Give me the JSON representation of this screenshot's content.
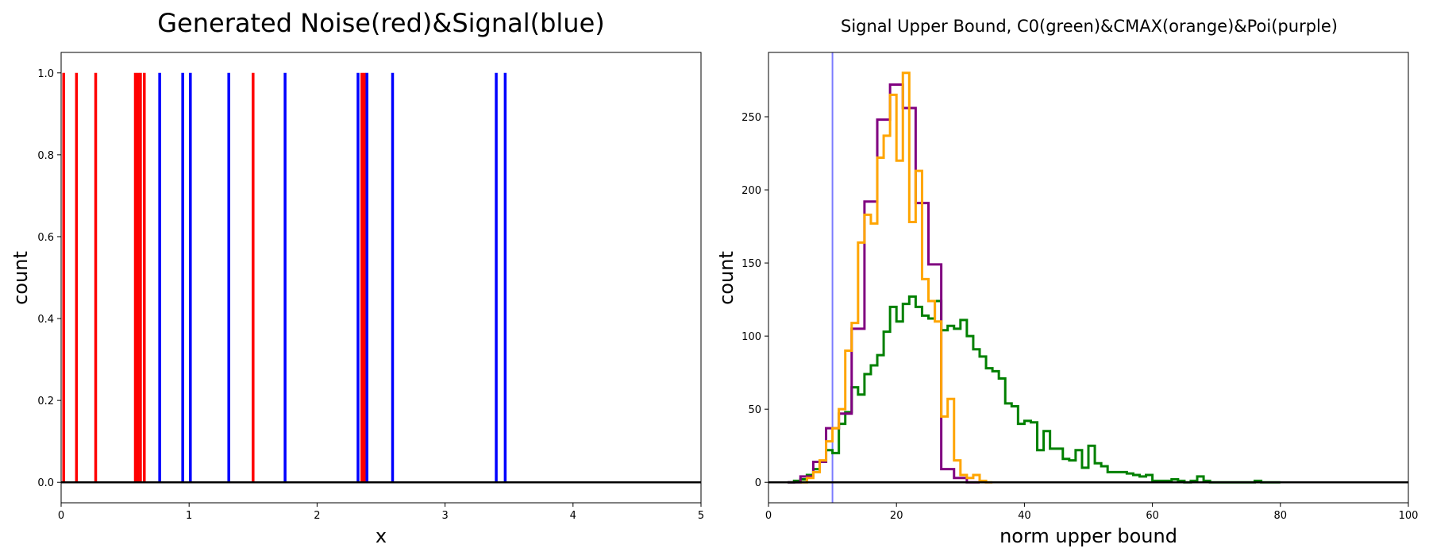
{
  "chart_data": [
    {
      "type": "line",
      "title": "Generated Noise(red)&Signal(blue)",
      "xlabel": "x",
      "ylabel": "count",
      "xlim": [
        0,
        5
      ],
      "ylim": [
        -0.05,
        1.05
      ],
      "xticks": [
        0,
        1,
        2,
        3,
        4,
        5
      ],
      "yticks": [
        0.0,
        0.2,
        0.4,
        0.6,
        0.8,
        1.0
      ],
      "grid": false,
      "baseline": 0,
      "series": [
        {
          "color": "#ff0000",
          "x": [
            0.02,
            0.12,
            0.27,
            0.58,
            0.6,
            0.62,
            0.65,
            1.5,
            2.35,
            2.37
          ]
        },
        {
          "color": "#0000ff",
          "x": [
            0.77,
            0.95,
            1.01,
            1.31,
            1.75,
            2.32,
            2.39,
            2.59,
            3.4,
            3.47
          ]
        }
      ]
    },
    {
      "type": "line",
      "title": "Signal Upper Bound, C0(green)&CMAX(orange)&Poi(purple)",
      "xlabel": "norm upper bound",
      "ylabel": "count",
      "xlim": [
        0,
        100
      ],
      "ylim": [
        -14,
        294
      ],
      "xticks": [
        0,
        20,
        40,
        60,
        80,
        100
      ],
      "yticks": [
        0,
        50,
        100,
        150,
        200,
        250
      ],
      "grid": false,
      "baseline": 0,
      "vline": {
        "x": 10,
        "color": "#7b7bff"
      },
      "series": [
        {
          "color": "#008000",
          "bins": [
            [
              3,
              4,
              0
            ],
            [
              4,
              5,
              1
            ],
            [
              5,
              6,
              2
            ],
            [
              6,
              7,
              5
            ],
            [
              7,
              8,
              9
            ],
            [
              8,
              9,
              14
            ],
            [
              9,
              10,
              22
            ],
            [
              10,
              11,
              20
            ],
            [
              11,
              12,
              40
            ],
            [
              12,
              13,
              48
            ],
            [
              13,
              14,
              65
            ],
            [
              14,
              15,
              60
            ],
            [
              15,
              16,
              74
            ],
            [
              16,
              17,
              80
            ],
            [
              17,
              18,
              87
            ],
            [
              18,
              19,
              103
            ],
            [
              19,
              20,
              120
            ],
            [
              20,
              21,
              110
            ],
            [
              21,
              22,
              122
            ],
            [
              22,
              23,
              127
            ],
            [
              23,
              24,
              120
            ],
            [
              24,
              25,
              114
            ],
            [
              25,
              26,
              112
            ],
            [
              26,
              27,
              124
            ],
            [
              27,
              28,
              104
            ],
            [
              28,
              29,
              107
            ],
            [
              29,
              30,
              105
            ],
            [
              30,
              31,
              111
            ],
            [
              31,
              32,
              100
            ],
            [
              32,
              33,
              91
            ],
            [
              33,
              34,
              86
            ],
            [
              34,
              35,
              78
            ],
            [
              35,
              36,
              76
            ],
            [
              36,
              37,
              71
            ],
            [
              37,
              38,
              54
            ],
            [
              38,
              39,
              52
            ],
            [
              39,
              40,
              40
            ],
            [
              40,
              41,
              42
            ],
            [
              41,
              42,
              41
            ],
            [
              42,
              43,
              22
            ],
            [
              43,
              44,
              35
            ],
            [
              44,
              45,
              23
            ],
            [
              45,
              46,
              23
            ],
            [
              46,
              47,
              16
            ],
            [
              47,
              48,
              15
            ],
            [
              48,
              49,
              22
            ],
            [
              49,
              50,
              10
            ],
            [
              50,
              51,
              25
            ],
            [
              51,
              52,
              13
            ],
            [
              52,
              53,
              11
            ],
            [
              53,
              54,
              7
            ],
            [
              54,
              55,
              7
            ],
            [
              55,
              56,
              7
            ],
            [
              56,
              57,
              6
            ],
            [
              57,
              58,
              5
            ],
            [
              58,
              59,
              4
            ],
            [
              59,
              60,
              5
            ],
            [
              60,
              61,
              1
            ],
            [
              61,
              62,
              1
            ],
            [
              62,
              63,
              1
            ],
            [
              63,
              64,
              2
            ],
            [
              64,
              65,
              1
            ],
            [
              65,
              66,
              0
            ],
            [
              66,
              67,
              1
            ],
            [
              67,
              68,
              4
            ],
            [
              68,
              69,
              1
            ],
            [
              69,
              70,
              0
            ],
            [
              70,
              76,
              0
            ],
            [
              76,
              77,
              1
            ],
            [
              77,
              80,
              0
            ]
          ]
        },
        {
          "color": "#ffa500",
          "bins": [
            [
              5,
              6,
              0
            ],
            [
              6,
              7,
              3
            ],
            [
              7,
              8,
              7
            ],
            [
              8,
              9,
              15
            ],
            [
              9,
              10,
              28
            ],
            [
              10,
              11,
              37
            ],
            [
              11,
              12,
              50
            ],
            [
              12,
              13,
              90
            ],
            [
              13,
              14,
              109
            ],
            [
              14,
              15,
              164
            ],
            [
              15,
              16,
              183
            ],
            [
              16,
              17,
              177
            ],
            [
              17,
              18,
              222
            ],
            [
              18,
              19,
              237
            ],
            [
              19,
              20,
              265
            ],
            [
              20,
              21,
              220
            ],
            [
              21,
              22,
              280
            ],
            [
              22,
              23,
              178
            ],
            [
              23,
              24,
              213
            ],
            [
              24,
              25,
              139
            ],
            [
              25,
              26,
              124
            ],
            [
              26,
              27,
              110
            ],
            [
              27,
              28,
              45
            ],
            [
              28,
              29,
              57
            ],
            [
              29,
              30,
              15
            ],
            [
              30,
              31,
              5
            ],
            [
              31,
              32,
              3
            ],
            [
              32,
              33,
              5
            ],
            [
              33,
              34,
              1
            ],
            [
              34,
              35,
              0
            ]
          ]
        },
        {
          "color": "#800080",
          "bins": [
            [
              3,
              5,
              0
            ],
            [
              5,
              7,
              4
            ],
            [
              7,
              9,
              14
            ],
            [
              9,
              11,
              37
            ],
            [
              11,
              13,
              47
            ],
            [
              13,
              15,
              105
            ],
            [
              15,
              17,
              192
            ],
            [
              17,
              19,
              248
            ],
            [
              19,
              21,
              272
            ],
            [
              21,
              23,
              256
            ],
            [
              23,
              25,
              191
            ],
            [
              25,
              27,
              149
            ],
            [
              27,
              29,
              9
            ],
            [
              29,
              31,
              3
            ],
            [
              31,
              33,
              0
            ]
          ]
        }
      ]
    }
  ]
}
